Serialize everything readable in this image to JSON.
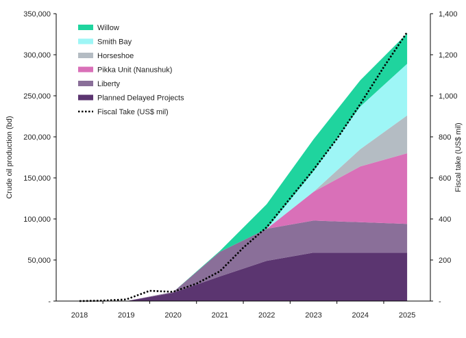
{
  "chart_data": {
    "type": "area",
    "title": "",
    "categories": [
      "2018",
      "2019",
      "2020",
      "2021",
      "2022",
      "2023",
      "2024",
      "2025"
    ],
    "x_axis_label": "",
    "y_left": {
      "label": "Crude oil production (bd)",
      "ylim": [
        0,
        350000
      ],
      "ticks": [
        "-",
        "50,000",
        "100,000",
        "150,000",
        "200,000",
        "250,000",
        "300,000",
        "350,000"
      ],
      "tick_values": [
        0,
        50000,
        100000,
        150000,
        200000,
        250000,
        300000,
        350000
      ]
    },
    "y_right": {
      "label": "Fiscal take (US$ mil)",
      "ylim": [
        0,
        1400
      ],
      "ticks": [
        "-",
        "200",
        "400",
        "600",
        "800",
        "1,000",
        "1,200",
        "1,400"
      ],
      "tick_values": [
        0,
        200,
        400,
        600,
        800,
        1000,
        1200,
        1400
      ]
    },
    "stacked_series": [
      {
        "name": "Planned Delayed Projects",
        "color": "#5b3570",
        "values": [
          0,
          0,
          10000,
          30000,
          49000,
          59000,
          59000,
          59000
        ]
      },
      {
        "name": "Liberty",
        "color": "#8a6f99",
        "values": [
          0,
          0,
          1000,
          30000,
          39000,
          39000,
          37000,
          35000
        ]
      },
      {
        "name": "Pikka Unit (Nanushuk)",
        "color": "#d970b8",
        "values": [
          0,
          0,
          0,
          0,
          0,
          35000,
          68000,
          86000
        ]
      },
      {
        "name": "Horseshoe",
        "color": "#b4bcc3",
        "values": [
          0,
          0,
          0,
          0,
          0,
          0,
          21000,
          46000
        ]
      },
      {
        "name": "Smith Bay",
        "color": "#9ef6f6",
        "values": [
          0,
          0,
          0,
          0,
          0,
          25000,
          52000,
          63000
        ]
      },
      {
        "name": "Willow",
        "color": "#1fd49e",
        "values": [
          0,
          0,
          0,
          1000,
          30000,
          39000,
          32000,
          37000
        ]
      }
    ],
    "line_series": {
      "name": "Fiscal Take (US$ mil)",
      "axis": "right",
      "style": "dotted",
      "color": "#000000",
      "x": [
        2018,
        2018.5,
        2019,
        2019.5,
        2020,
        2020.5,
        2021,
        2021.5,
        2022,
        2022.5,
        2023,
        2023.5,
        2024,
        2024.5,
        2025
      ],
      "values": [
        0,
        2,
        8,
        50,
        45,
        85,
        145,
        260,
        360,
        500,
        640,
        790,
        960,
        1140,
        1310
      ]
    },
    "legend_order": [
      "Willow",
      "Smith Bay",
      "Horseshoe",
      "Pikka Unit (Nanushuk)",
      "Liberty",
      "Planned Delayed Projects",
      "Fiscal Take (US$ mil)"
    ],
    "legend_position": "top-left",
    "grid": false
  }
}
